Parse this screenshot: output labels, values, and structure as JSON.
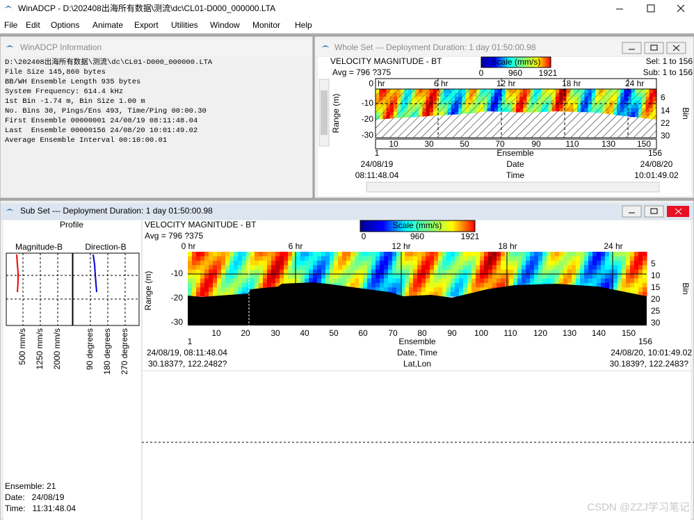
{
  "window": {
    "title": "WinADCP - D:\\202408出海所有数据\\测流\\dc\\CL01-D000_000000.LTA"
  },
  "menu": [
    "File",
    "Edit",
    "Options",
    "Animate",
    "Export",
    "Utilities",
    "Window",
    "Monitor",
    "Help"
  ],
  "info": {
    "title": "WinADCP Information",
    "lines": [
      "D:\\202408出海所有数据\\测流\\dc\\CL01-D000_000000.LTA",
      "File Size 145,860 bytes",
      "BB/WH Ensemble Length 935 bytes",
      "System Frequency: 614.4 kHz",
      "1st Bin -1.74 m, Bin Size 1.00 m",
      "No. Bins 30, Pings/Ens 493, Time/Ping 00:00.30",
      "First Ensemble 00000001 24/08/19 08:11:48.04",
      "Last  Ensemble 00000156 24/08/20 10:01:49.02",
      "Average Ensemble Interval 00:10:00.01"
    ]
  },
  "whole_set": {
    "title": "Whole Set --- Deployment Duration: 1 day 01:50:00.98",
    "plot_title": "VELOCITY MAGNITUDE - BT",
    "average": "Avg = 796 ?375",
    "scale": {
      "label": "Scale (mm/s)",
      "ticks": [
        "0",
        "960",
        "1921"
      ]
    },
    "selection": "Sel: 1 to 156",
    "subset": "Sub: 1 to 156",
    "y_label": "Range (m)",
    "y_ticks": [
      "0",
      "-10",
      "-20",
      "-30"
    ],
    "hour_ticks": [
      "hr",
      "6 hr",
      "12 hr",
      "18 hr",
      "24 hr"
    ],
    "bin_label": "Bin",
    "bin_ticks": [
      "6",
      "14",
      "22",
      "30"
    ],
    "x_label": "Ensemble",
    "x_ticks": [
      "10",
      "30",
      "50",
      "70",
      "90",
      "110",
      "130",
      "150"
    ],
    "x_start": "1",
    "x_end": "156",
    "date": {
      "label": "Date",
      "start": "24/08/19",
      "end": "24/08/20"
    },
    "time": {
      "label": "Time",
      "start": "08:11:48.04",
      "end": "10:01:49.02"
    }
  },
  "sub_set": {
    "title": "Sub Set --- Deployment Duration: 1 day 01:50:00.98",
    "profile": {
      "title": "Profile",
      "magnitude": "Magnitude-B",
      "direction": "Direction-B",
      "magnitude_ticks": [
        "500 mm/s",
        "1250 mm/s",
        "2000 mm/s"
      ],
      "direction_ticks": [
        "90 degrees",
        "180 degrees",
        "270 degrees"
      ]
    },
    "plot_title": "VELOCITY MAGNITUDE - BT",
    "average": "Avg = 796 ?375",
    "scale": {
      "label": "Scale (mm/s)",
      "ticks": [
        "0",
        "960",
        "1921"
      ]
    },
    "hour_ticks": [
      "0 hr",
      "6 hr",
      "12 hr",
      "18 hr",
      "24 hr"
    ],
    "y_label": "Range (m)",
    "y_ticks": [
      "-10",
      "-20",
      "-30"
    ],
    "bin_label": "Bin",
    "bin_ticks": [
      "5",
      "10",
      "15",
      "20",
      "25",
      "30"
    ],
    "x_label": "Ensemble",
    "x_ticks": [
      "10",
      "20",
      "30",
      "40",
      "50",
      "60",
      "70",
      "80",
      "90",
      "100",
      "110",
      "120",
      "130",
      "140",
      "150"
    ],
    "x_start": "1",
    "x_end": "156",
    "datetime": {
      "label": "Date, Time",
      "start": "24/08/19, 08:11:48.04",
      "end": "24/08/20, 10:01:49.02"
    },
    "latlon": {
      "label": "Lat,Lon",
      "start": "30.1837?, 122.2482?",
      "end": "30.1839?, 122.2483?"
    },
    "status": {
      "ensemble": "Ensemble: 21",
      "date": "Date:   24/08/19",
      "time": "Time:   11:31:48.04"
    }
  },
  "watermark": "CSDN @ZZJ学习笔记"
}
